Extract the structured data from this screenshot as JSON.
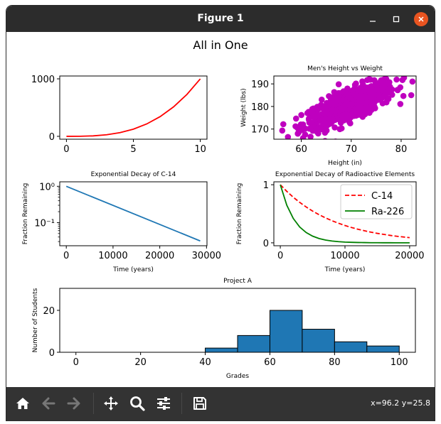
{
  "window": {
    "title": "Figure 1"
  },
  "figure": {
    "suptitle": "All in One"
  },
  "toolbar": {
    "coords": "x=96.2 y=25.8",
    "icons": [
      "home-icon",
      "back-arrow-icon",
      "forward-arrow-icon",
      "pan-icon",
      "zoom-icon",
      "configure-subplots-icon",
      "save-icon"
    ]
  },
  "chart_data": [
    {
      "type": "line",
      "title": "",
      "xlabel": "",
      "ylabel": "",
      "x": [
        0,
        1,
        2,
        3,
        4,
        5,
        6,
        7,
        8,
        9,
        10
      ],
      "series": [
        {
          "values": [
            0,
            1,
            8,
            27,
            64,
            125,
            216,
            343,
            512,
            729,
            1000
          ],
          "color": "#ff0000"
        }
      ],
      "xlim": [
        -0.5,
        10.5
      ],
      "ylim": [
        -50,
        1050
      ],
      "xticks": [
        0,
        5,
        10
      ],
      "xticklabels": [
        "0",
        "5",
        "10"
      ],
      "yticks": [
        0,
        1000
      ],
      "yticklabels": [
        "0",
        "1000"
      ]
    },
    {
      "type": "scatter",
      "title": "Men's Height vs Weight",
      "xlabel": "Height (in)",
      "ylabel": "Weight (lbs)",
      "color": "#bf00bf",
      "xlim": [
        54.5,
        83
      ],
      "ylim": [
        165.5,
        193.5
      ],
      "xticks": [
        60,
        70,
        80
      ],
      "xticklabels": [
        "60",
        "70",
        "80"
      ],
      "yticks": [
        170,
        180,
        190
      ],
      "yticklabels": [
        "170",
        "180",
        "190"
      ]
    },
    {
      "type": "line",
      "title": "Exponential Decay of C-14",
      "xlabel": "Time (years)",
      "ylabel": "Fraction Remaining",
      "yscale": "log",
      "x": [
        0,
        28650
      ],
      "series": [
        {
          "values": [
            1.0,
            0.0312
          ],
          "color": "#1f77b4"
        }
      ],
      "xlim": [
        -1400,
        30100
      ],
      "ylim": [
        0.023,
        1.33
      ],
      "xticks": [
        0,
        10000,
        20000,
        30000
      ],
      "xticklabels": [
        "0",
        "10000",
        "20000",
        "30000"
      ],
      "yticks": [
        1,
        0.1
      ],
      "yticklabels": [
        "10⁰",
        "10⁻¹"
      ]
    },
    {
      "type": "line",
      "title": "Exponential Decay of Radioactive Elements",
      "xlabel": "Time (years)",
      "ylabel": "Fraction Remaining",
      "x": [
        0,
        1000,
        2000,
        3000,
        4000,
        5000,
        6000,
        7000,
        8000,
        9000,
        10000,
        11000,
        12000,
        13000,
        14000,
        15000,
        16000,
        17000,
        18000,
        19000,
        20000
      ],
      "series": [
        {
          "name": "C-14",
          "color": "#ff0000",
          "dash": true,
          "values": [
            1.0,
            0.886,
            0.785,
            0.696,
            0.617,
            0.546,
            0.484,
            0.429,
            0.38,
            0.337,
            0.298,
            0.264,
            0.234,
            0.208,
            0.184,
            0.163,
            0.145,
            0.128,
            0.113,
            0.101,
            0.089
          ]
        },
        {
          "name": "Ra-226",
          "color": "#008000",
          "dash": false,
          "values": [
            1.0,
            0.648,
            0.42,
            0.272,
            0.177,
            0.115,
            0.074,
            0.048,
            0.031,
            0.02,
            0.013,
            0.009,
            0.006,
            0.004,
            0.002,
            0.002,
            0.001,
            0.001,
            0.0,
            0.0,
            0.0
          ]
        }
      ],
      "xlim": [
        -1000,
        21000
      ],
      "ylim": [
        -0.05,
        1.05
      ],
      "xticks": [
        0,
        10000,
        20000
      ],
      "xticklabels": [
        "0",
        "10000",
        "20000"
      ],
      "yticks": [
        0,
        1
      ],
      "yticklabels": [
        "0",
        "1"
      ],
      "legend": "upper-right"
    },
    {
      "type": "bar",
      "title": "Project A",
      "xlabel": "Grades",
      "ylabel": "Number of Students",
      "bins": [
        [
          40,
          50
        ],
        [
          50,
          60
        ],
        [
          60,
          70
        ],
        [
          70,
          80
        ],
        [
          80,
          90
        ],
        [
          90,
          100
        ]
      ],
      "values": [
        2,
        8,
        20,
        11,
        5,
        3
      ],
      "color": "#1f77b4",
      "xlim": [
        -5,
        105
      ],
      "ylim": [
        0,
        30.5
      ],
      "xticks": [
        0,
        20,
        40,
        60,
        80,
        100
      ],
      "xticklabels": [
        "0",
        "20",
        "40",
        "60",
        "80",
        "100"
      ],
      "yticks": [
        0,
        20
      ],
      "yticklabels": [
        "0",
        "20"
      ]
    }
  ]
}
